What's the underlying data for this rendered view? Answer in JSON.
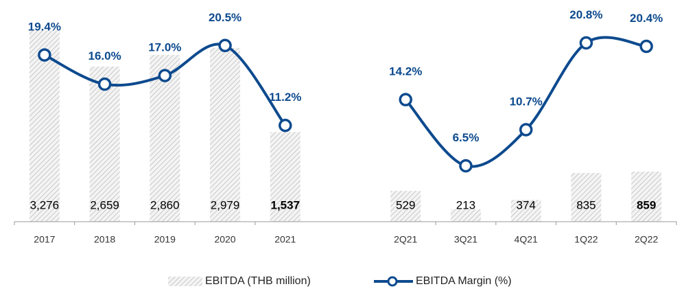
{
  "chart_data": {
    "type": "combo",
    "categories": [
      "2017",
      "2018",
      "2019",
      "2020",
      "2021",
      null,
      "2Q21",
      "3Q21",
      "4Q21",
      "1Q22",
      "2Q22"
    ],
    "ylim": [
      0,
      3330
    ],
    "y2lim": [
      0,
      22.6
    ],
    "series": [
      {
        "name": "EBITDA (THB million)",
        "type": "bar",
        "color": "#bdbdbd",
        "values": [
          3276,
          2659,
          2860,
          2979,
          1537,
          null,
          529,
          213,
          374,
          835,
          859
        ],
        "value_labels": [
          "3,276",
          "2,659",
          "2,860",
          "2,979",
          "1,537",
          null,
          "529",
          "213",
          "374",
          "835",
          "859"
        ],
        "value_label_bold": [
          false,
          false,
          false,
          false,
          true,
          false,
          false,
          false,
          false,
          false,
          true
        ]
      },
      {
        "name": "EBITDA Margin (%)",
        "type": "line",
        "axis": "y2",
        "color": "#0d4a8e",
        "values": [
          19.4,
          16.0,
          17.0,
          20.5,
          11.2,
          null,
          14.2,
          6.5,
          10.7,
          20.8,
          20.4
        ],
        "value_labels": [
          "19.4%",
          "16.0%",
          "17.0%",
          "20.5%",
          "11.2%",
          null,
          "14.2%",
          "6.5%",
          "10.7%",
          "20.8%",
          "20.4%"
        ]
      }
    ]
  }
}
